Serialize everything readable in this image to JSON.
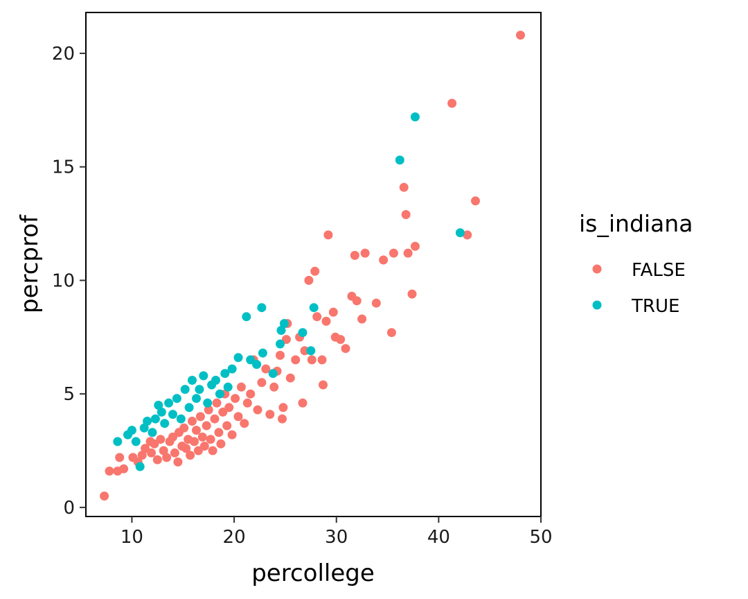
{
  "chart_data": {
    "type": "scatter",
    "xlabel": "percollege",
    "ylabel": "percprof",
    "xlim": [
      5.5,
      50
    ],
    "ylim": [
      -0.4,
      21.8
    ],
    "x_ticks": [
      10,
      20,
      30,
      40,
      50
    ],
    "y_ticks": [
      0,
      5,
      10,
      15,
      20
    ],
    "grid": false,
    "legend": {
      "title": "is_indiana",
      "placement": "right",
      "entries": [
        "FALSE",
        "TRUE"
      ]
    },
    "series": [
      {
        "name": "FALSE",
        "color": "#F8766D",
        "points": [
          [
            7.3,
            0.5
          ],
          [
            7.8,
            1.6
          ],
          [
            8.6,
            1.6
          ],
          [
            9.2,
            1.7
          ],
          [
            8.8,
            2.2
          ],
          [
            10.1,
            2.2
          ],
          [
            10.6,
            2.0
          ],
          [
            11.0,
            2.3
          ],
          [
            11.3,
            2.6
          ],
          [
            11.8,
            2.9
          ],
          [
            11.9,
            2.4
          ],
          [
            12.2,
            2.8
          ],
          [
            12.5,
            2.1
          ],
          [
            12.8,
            3.0
          ],
          [
            13.1,
            2.5
          ],
          [
            13.4,
            2.2
          ],
          [
            13.7,
            2.9
          ],
          [
            14.0,
            3.1
          ],
          [
            14.2,
            2.4
          ],
          [
            14.5,
            2.0
          ],
          [
            14.6,
            3.3
          ],
          [
            14.9,
            2.7
          ],
          [
            15.1,
            3.5
          ],
          [
            15.3,
            2.6
          ],
          [
            15.5,
            3.0
          ],
          [
            15.7,
            2.3
          ],
          [
            15.9,
            3.8
          ],
          [
            16.1,
            2.9
          ],
          [
            16.3,
            3.4
          ],
          [
            16.5,
            2.5
          ],
          [
            16.7,
            4.0
          ],
          [
            16.9,
            3.1
          ],
          [
            17.1,
            2.7
          ],
          [
            17.3,
            3.6
          ],
          [
            17.5,
            4.3
          ],
          [
            17.7,
            3.0
          ],
          [
            17.9,
            2.5
          ],
          [
            18.1,
            3.9
          ],
          [
            18.3,
            4.6
          ],
          [
            18.5,
            3.3
          ],
          [
            18.7,
            2.8
          ],
          [
            18.9,
            4.2
          ],
          [
            19.1,
            5.0
          ],
          [
            19.3,
            3.6
          ],
          [
            19.5,
            4.4
          ],
          [
            19.8,
            3.2
          ],
          [
            20.1,
            4.8
          ],
          [
            20.4,
            4.0
          ],
          [
            20.7,
            5.3
          ],
          [
            21.0,
            3.7
          ],
          [
            21.3,
            4.6
          ],
          [
            21.6,
            5.0
          ],
          [
            21.9,
            6.5
          ],
          [
            22.3,
            4.3
          ],
          [
            22.7,
            5.5
          ],
          [
            23.1,
            6.1
          ],
          [
            23.5,
            4.1
          ],
          [
            23.9,
            5.3
          ],
          [
            24.2,
            6.0
          ],
          [
            24.5,
            6.7
          ],
          [
            24.7,
            3.9
          ],
          [
            24.8,
            4.4
          ],
          [
            25.1,
            7.4
          ],
          [
            25.2,
            8.1
          ],
          [
            25.5,
            5.7
          ],
          [
            26.0,
            6.5
          ],
          [
            26.4,
            7.5
          ],
          [
            26.7,
            4.6
          ],
          [
            26.9,
            6.9
          ],
          [
            27.3,
            10.0
          ],
          [
            27.6,
            6.5
          ],
          [
            27.9,
            10.4
          ],
          [
            28.1,
            8.4
          ],
          [
            28.6,
            6.5
          ],
          [
            28.7,
            5.4
          ],
          [
            29.0,
            8.2
          ],
          [
            29.2,
            12.0
          ],
          [
            29.7,
            8.6
          ],
          [
            29.9,
            7.5
          ],
          [
            30.4,
            7.4
          ],
          [
            30.9,
            7.0
          ],
          [
            31.5,
            9.3
          ],
          [
            31.8,
            11.1
          ],
          [
            32.0,
            9.1
          ],
          [
            32.5,
            8.3
          ],
          [
            32.8,
            11.2
          ],
          [
            33.9,
            9.0
          ],
          [
            34.6,
            10.9
          ],
          [
            35.4,
            7.7
          ],
          [
            35.6,
            11.2
          ],
          [
            36.6,
            14.1
          ],
          [
            36.8,
            12.9
          ],
          [
            37.0,
            11.2
          ],
          [
            37.4,
            9.4
          ],
          [
            37.7,
            11.5
          ],
          [
            41.3,
            17.8
          ],
          [
            42.8,
            12.0
          ],
          [
            43.6,
            13.5
          ],
          [
            48.0,
            20.8
          ]
        ]
      },
      {
        "name": "TRUE",
        "color": "#00BFC4",
        "points": [
          [
            8.6,
            2.9
          ],
          [
            9.6,
            3.2
          ],
          [
            10.0,
            3.4
          ],
          [
            10.4,
            2.9
          ],
          [
            10.8,
            1.8
          ],
          [
            11.2,
            3.5
          ],
          [
            11.5,
            3.8
          ],
          [
            12.0,
            3.3
          ],
          [
            12.3,
            3.9
          ],
          [
            12.6,
            4.5
          ],
          [
            12.9,
            4.2
          ],
          [
            13.2,
            3.7
          ],
          [
            13.6,
            4.6
          ],
          [
            14.0,
            4.1
          ],
          [
            14.4,
            4.8
          ],
          [
            14.8,
            3.9
          ],
          [
            15.2,
            5.2
          ],
          [
            15.6,
            4.4
          ],
          [
            15.9,
            5.6
          ],
          [
            16.3,
            4.8
          ],
          [
            16.6,
            5.2
          ],
          [
            17.0,
            5.8
          ],
          [
            17.4,
            4.6
          ],
          [
            17.8,
            5.4
          ],
          [
            18.2,
            5.6
          ],
          [
            18.6,
            5.0
          ],
          [
            19.1,
            5.9
          ],
          [
            19.4,
            5.3
          ],
          [
            19.8,
            6.1
          ],
          [
            20.4,
            6.6
          ],
          [
            21.2,
            8.4
          ],
          [
            21.6,
            6.5
          ],
          [
            22.2,
            6.3
          ],
          [
            22.7,
            8.8
          ],
          [
            22.8,
            6.8
          ],
          [
            23.8,
            5.9
          ],
          [
            24.5,
            7.2
          ],
          [
            24.6,
            7.8
          ],
          [
            24.9,
            8.1
          ],
          [
            26.7,
            7.7
          ],
          [
            27.5,
            6.9
          ],
          [
            27.8,
            8.8
          ],
          [
            36.2,
            15.3
          ],
          [
            37.7,
            17.2
          ],
          [
            42.1,
            12.1
          ]
        ]
      }
    ]
  }
}
